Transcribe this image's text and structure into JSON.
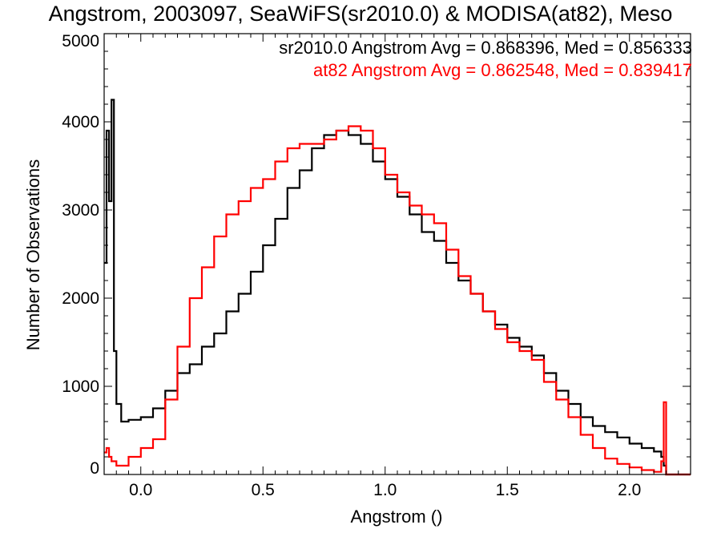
{
  "chart_data": {
    "type": "line",
    "title": "Angstrom, 2003097, SeaWiFS(sr2010.0) & MODISA(at82), Meso",
    "xlabel": "Angstrom ()",
    "ylabel": "Number of Observations",
    "xlim": [
      -0.15,
      2.25
    ],
    "ylim": [
      0,
      5000
    ],
    "x_ticks": [
      "0.0",
      "0.5",
      "1.0",
      "1.5",
      "2.0"
    ],
    "y_ticks": [
      "0",
      "1000",
      "2000",
      "3000",
      "4000",
      "5000"
    ],
    "grid": false,
    "annotations": [
      {
        "text": "sr2010.0 Angstrom Avg = 0.868396, Med = 0.856333",
        "color": "#000000"
      },
      {
        "text": "at82 Angstrom Avg = 0.862548, Med = 0.839417",
        "color": "#ff0000"
      }
    ],
    "series": [
      {
        "color": "#000000",
        "x": [
          -0.15,
          -0.14,
          -0.13,
          -0.12,
          -0.11,
          -0.1,
          -0.08,
          -0.05,
          0.0,
          0.05,
          0.1,
          0.15,
          0.2,
          0.25,
          0.3,
          0.35,
          0.4,
          0.45,
          0.5,
          0.55,
          0.6,
          0.65,
          0.7,
          0.75,
          0.8,
          0.85,
          0.9,
          0.95,
          1.0,
          1.05,
          1.1,
          1.15,
          1.2,
          1.25,
          1.3,
          1.35,
          1.4,
          1.45,
          1.5,
          1.55,
          1.6,
          1.65,
          1.7,
          1.75,
          1.8,
          1.85,
          1.9,
          1.95,
          2.0,
          2.05,
          2.1,
          2.13,
          2.14,
          2.15,
          2.25
        ],
        "y": [
          2400,
          3900,
          3100,
          4250,
          1400,
          800,
          600,
          620,
          650,
          750,
          950,
          1150,
          1250,
          1450,
          1600,
          1850,
          2050,
          2300,
          2600,
          2900,
          3250,
          3450,
          3700,
          3850,
          3900,
          3850,
          3750,
          3550,
          3350,
          3150,
          2950,
          2750,
          2650,
          2400,
          2200,
          2050,
          1850,
          1700,
          1550,
          1450,
          1350,
          1150,
          950,
          800,
          650,
          550,
          480,
          420,
          350,
          300,
          260,
          200,
          100,
          0,
          0
        ]
      },
      {
        "color": "#ff0000",
        "x": [
          -0.15,
          -0.14,
          -0.13,
          -0.12,
          -0.1,
          -0.05,
          0.0,
          0.05,
          0.1,
          0.15,
          0.2,
          0.25,
          0.3,
          0.35,
          0.4,
          0.45,
          0.5,
          0.55,
          0.6,
          0.65,
          0.7,
          0.75,
          0.8,
          0.85,
          0.9,
          0.95,
          1.0,
          1.05,
          1.1,
          1.15,
          1.2,
          1.25,
          1.3,
          1.35,
          1.4,
          1.45,
          1.5,
          1.55,
          1.6,
          1.65,
          1.7,
          1.75,
          1.8,
          1.85,
          1.9,
          1.95,
          2.0,
          2.05,
          2.1,
          2.13,
          2.14,
          2.15,
          2.25
        ],
        "y": [
          250,
          300,
          200,
          150,
          100,
          200,
          300,
          400,
          850,
          1450,
          2000,
          2350,
          2700,
          2950,
          3100,
          3250,
          3350,
          3550,
          3700,
          3750,
          3750,
          3800,
          3900,
          3950,
          3900,
          3700,
          3400,
          3200,
          3050,
          2950,
          2850,
          2550,
          2250,
          2050,
          1850,
          1650,
          1500,
          1400,
          1300,
          1050,
          850,
          650,
          450,
          300,
          180,
          120,
          80,
          50,
          30,
          150,
          820,
          0,
          0
        ]
      }
    ]
  }
}
